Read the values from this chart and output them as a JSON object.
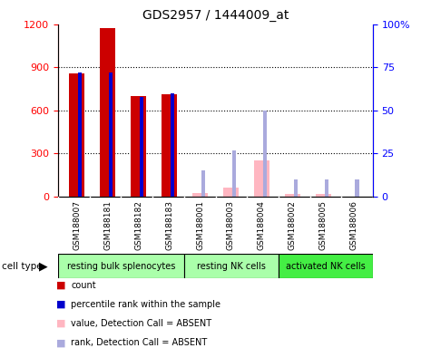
{
  "title": "GDS2957 / 1444009_at",
  "samples": [
    "GSM188007",
    "GSM188181",
    "GSM188182",
    "GSM188183",
    "GSM188001",
    "GSM188003",
    "GSM188004",
    "GSM188002",
    "GSM188005",
    "GSM188006"
  ],
  "count_values": [
    860,
    1175,
    700,
    710,
    null,
    null,
    null,
    null,
    null,
    null
  ],
  "rank_values": [
    72,
    72,
    58,
    60,
    null,
    null,
    null,
    null,
    null,
    null
  ],
  "absent_value": [
    null,
    null,
    null,
    null,
    25,
    60,
    255,
    20,
    20,
    null
  ],
  "absent_rank": [
    null,
    null,
    null,
    null,
    15,
    27,
    50,
    10,
    10,
    10
  ],
  "ylim_left": [
    0,
    1200
  ],
  "ylim_right": [
    0,
    100
  ],
  "yticks_left": [
    0,
    300,
    600,
    900,
    1200
  ],
  "yticks_right": [
    0,
    25,
    50,
    75,
    100
  ],
  "cell_type_groups": [
    {
      "label": "resting bulk splenocytes",
      "start": 0,
      "end": 4,
      "color": "#AAFFAA"
    },
    {
      "label": "resting NK cells",
      "start": 4,
      "end": 7,
      "color": "#AAFFAA"
    },
    {
      "label": "activated NK cells",
      "start": 7,
      "end": 10,
      "color": "#44EE44"
    }
  ],
  "count_color": "#CC0000",
  "rank_color": "#0000CC",
  "absent_value_color": "#FFB6C1",
  "absent_rank_color": "#AAAADD",
  "legend_items": [
    {
      "label": "count",
      "color": "#CC0000",
      "marker": "s"
    },
    {
      "label": "percentile rank within the sample",
      "color": "#0000CC",
      "marker": "s"
    },
    {
      "label": "value, Detection Call = ABSENT",
      "color": "#FFB6C1",
      "marker": "s"
    },
    {
      "label": "rank, Detection Call = ABSENT",
      "color": "#AAAADD",
      "marker": "s"
    }
  ]
}
